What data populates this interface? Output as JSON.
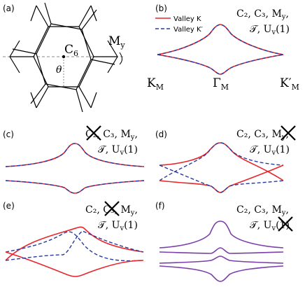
{
  "panels": {
    "a": {
      "label": "(a)",
      "c6": "C",
      "c6_sub": "6",
      "my": "M",
      "my_sub": "y",
      "theta": "θ"
    },
    "b": {
      "label": "(b)",
      "legend": [
        "Valley K",
        "Valley K′"
      ],
      "sym1": "C₂, C₃, M",
      "sym1_sub": "y",
      "sym1_tail": ",",
      "sym2": "𝒯, U",
      "sym2_sub": "v",
      "sym2_tail": "(1)",
      "k_m": "K",
      "k_m_sub": "M",
      "gamma_m": "Γ",
      "gamma_m_sub": "M",
      "kp_m": "K′",
      "kp_m_sub": "M"
    },
    "c": {
      "label": "(c)",
      "sym1": "C₂, C₃, M",
      "sym1_sub": "y",
      "sym1_tail": ",",
      "sym2": "𝒯, U",
      "sym2_sub": "v",
      "sym2_tail": "(1)"
    },
    "d": {
      "label": "(d)",
      "sym1": "C₂, C₃, M",
      "sym1_sub": "y",
      "sym1_tail": ",",
      "sym2": "𝒯, U",
      "sym2_sub": "v",
      "sym2_tail": "(1)"
    },
    "e": {
      "label": "(e)",
      "sym1": "C₂, C₃, M",
      "sym1_sub": "y",
      "sym1_tail": ",",
      "sym2": "𝒯, U",
      "sym2_sub": "v",
      "sym2_tail": "(1)"
    },
    "f": {
      "label": "(f)",
      "sym1": "C₂, C₃, M",
      "sym1_sub": "y",
      "sym1_tail": ",",
      "sym2": "𝒯, U",
      "sym2_sub": "v",
      "sym2_tail": "(1)"
    }
  },
  "colors": {
    "valley_k": "#e8262b",
    "valley_kp": "#2a3aa0",
    "merged": "#7a3fa8",
    "axis_dash": "#888888"
  }
}
